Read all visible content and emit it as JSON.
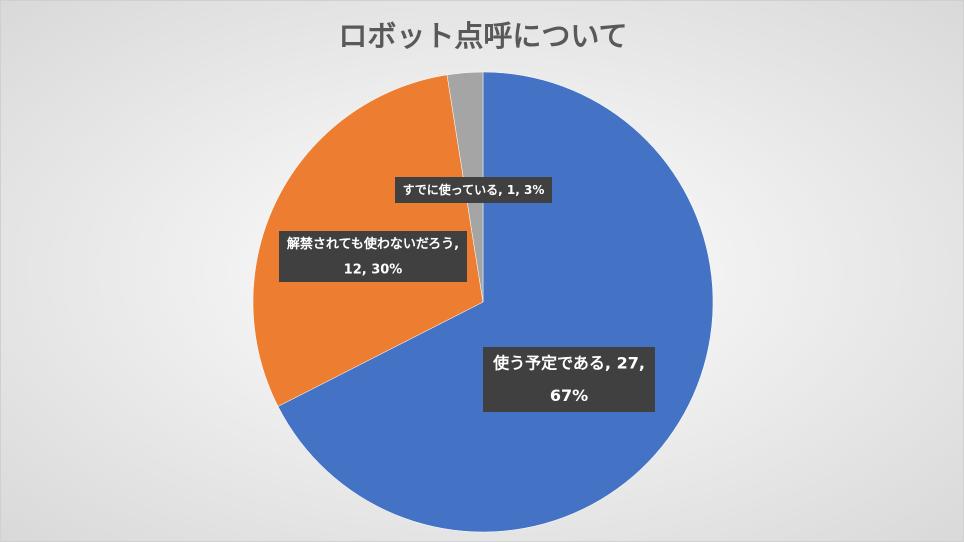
{
  "chart_data": {
    "type": "pie",
    "title": "ロボット点呼について",
    "categories": [
      "使う予定である",
      "解禁されても使わないだろう",
      "すでに使っている"
    ],
    "values": [
      27,
      12,
      1
    ],
    "percent_labels": [
      "67%",
      "30%",
      "3%"
    ],
    "label_separator": ", ",
    "colors": [
      "#4472c4",
      "#ed7d31",
      "#a5a5a5"
    ]
  }
}
